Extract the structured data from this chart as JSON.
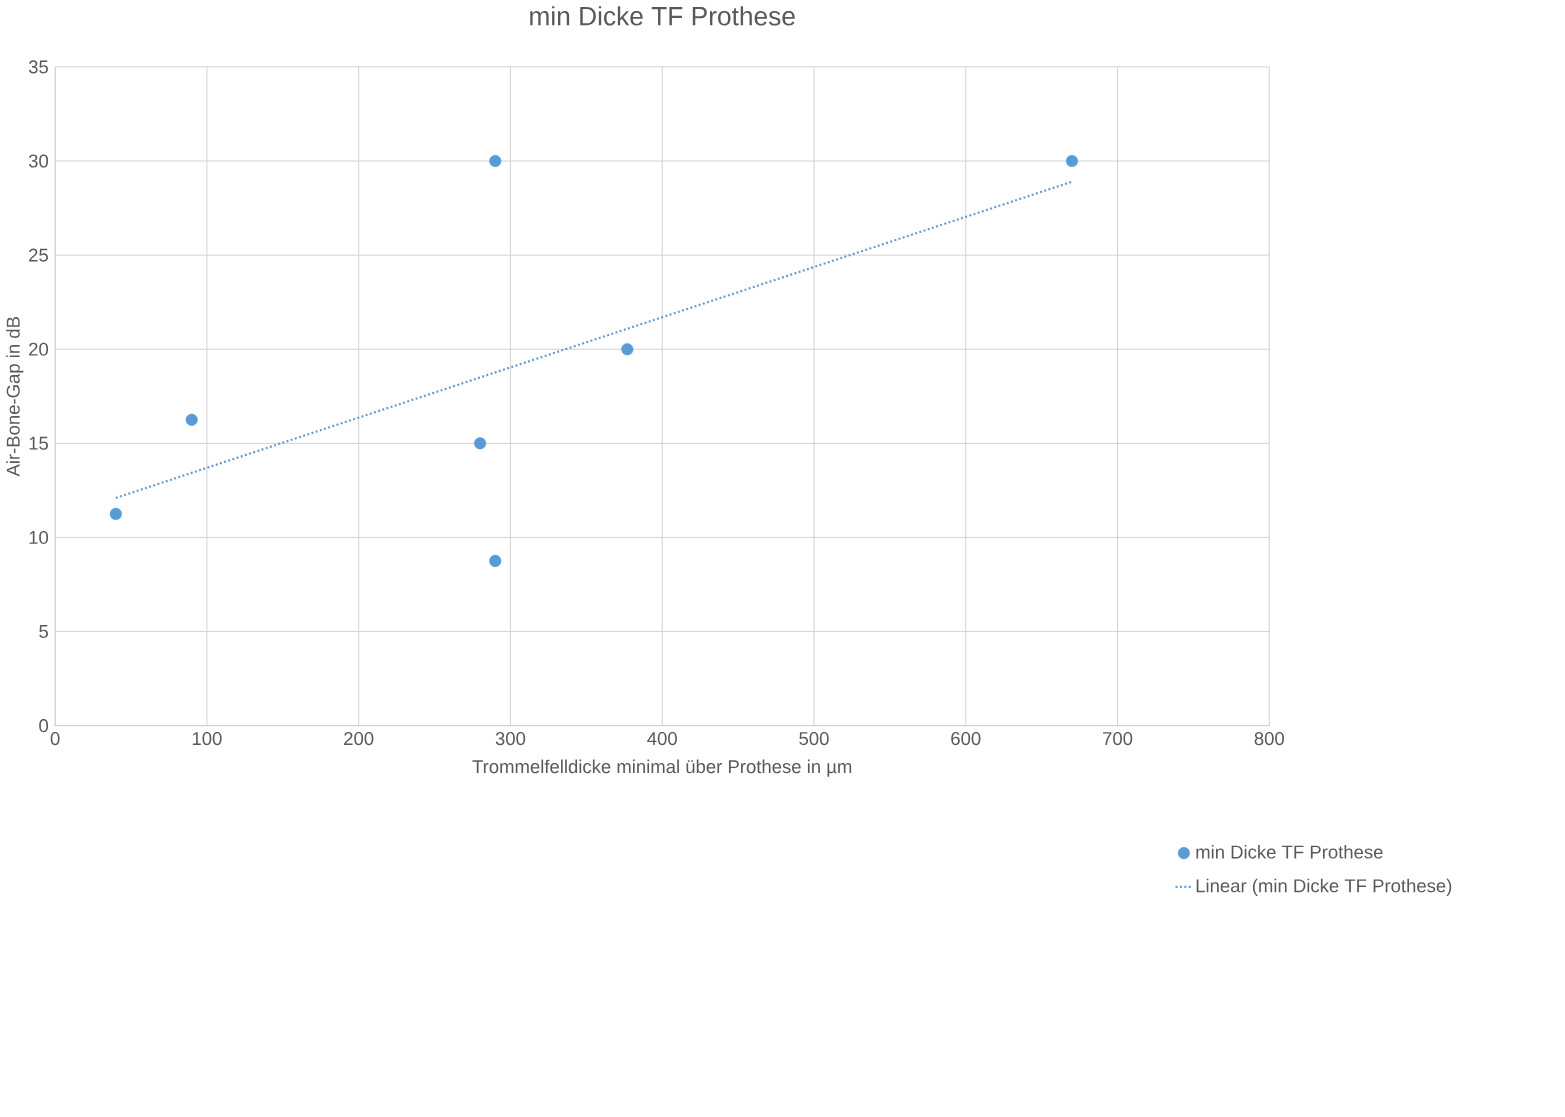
{
  "chart_data": {
    "type": "scatter",
    "title": "min Dicke TF Prothese",
    "xlabel": "Trommelfelldicke minimal über Prothese in µm",
    "ylabel": "Air-Bone-Gap in dB",
    "xlim": [
      0,
      800
    ],
    "ylim": [
      0,
      35
    ],
    "xticks": [
      0,
      100,
      200,
      300,
      400,
      500,
      600,
      700,
      800
    ],
    "yticks": [
      0,
      5,
      10,
      15,
      20,
      25,
      30,
      35
    ],
    "grid": true,
    "legend": "bottom right",
    "series": [
      {
        "name": "min Dicke TF Prothese",
        "color": "#5b9bd5",
        "marker": "circle",
        "x": [
          40,
          90,
          290,
          280,
          290,
          377,
          670
        ],
        "values": [
          11.25,
          16.25,
          30,
          15,
          8.75,
          20,
          30
        ]
      },
      {
        "name": "Linear (min Dicke TF Prothese)",
        "type": "line",
        "color": "#5b9bd5",
        "line_style": "dotted",
        "marker": "none",
        "x": [
          40,
          670
        ],
        "values": [
          12.1,
          28.9
        ]
      }
    ]
  }
}
